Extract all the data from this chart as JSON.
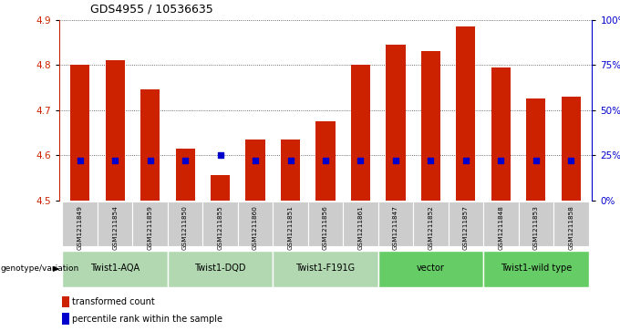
{
  "title": "GDS4955 / 10536635",
  "samples": [
    "GSM1211849",
    "GSM1211854",
    "GSM1211859",
    "GSM1211850",
    "GSM1211855",
    "GSM1211860",
    "GSM1211851",
    "GSM1211856",
    "GSM1211861",
    "GSM1211847",
    "GSM1211852",
    "GSM1211857",
    "GSM1211848",
    "GSM1211853",
    "GSM1211858"
  ],
  "transformed_counts": [
    4.8,
    4.81,
    4.745,
    4.615,
    4.555,
    4.635,
    4.635,
    4.675,
    4.8,
    4.845,
    4.83,
    4.885,
    4.795,
    4.725,
    4.73
  ],
  "percentile_ranks": [
    22,
    22,
    22,
    22,
    25,
    22,
    22,
    22,
    22,
    22,
    22,
    22,
    22,
    22,
    22
  ],
  "groups": [
    {
      "label": "Twist1-AQA",
      "indices": [
        0,
        1,
        2
      ],
      "color": "#b2d8b2"
    },
    {
      "label": "Twist1-DQD",
      "indices": [
        3,
        4,
        5
      ],
      "color": "#b2d8b2"
    },
    {
      "label": "Twist1-F191G",
      "indices": [
        6,
        7,
        8
      ],
      "color": "#b2d8b2"
    },
    {
      "label": "vector",
      "indices": [
        9,
        10,
        11
      ],
      "color": "#66cc66"
    },
    {
      "label": "Twist1-wild type",
      "indices": [
        12,
        13,
        14
      ],
      "color": "#66cc66"
    }
  ],
  "ylim_left": [
    4.5,
    4.9
  ],
  "yticks_left": [
    4.5,
    4.6,
    4.7,
    4.8,
    4.9
  ],
  "ylim_right": [
    0,
    100
  ],
  "yticks_right": [
    0,
    25,
    50,
    75,
    100
  ],
  "yticklabels_right": [
    "0%",
    "25%",
    "50%",
    "75%",
    "100%"
  ],
  "bar_color": "#cc2200",
  "dot_color": "#0000cc",
  "bar_width": 0.55,
  "bg_color": "#ffffff",
  "grid_color": "#444444",
  "sample_bg": "#cccccc",
  "legend_red": "transformed count",
  "legend_blue": "percentile rank within the sample",
  "genotype_label": "genotype/variation"
}
